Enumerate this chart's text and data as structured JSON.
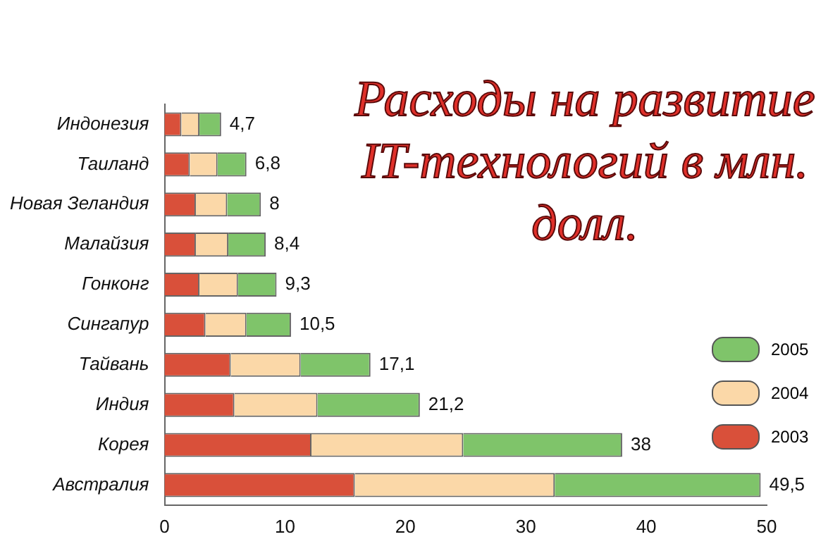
{
  "chart_data": {
    "type": "bar",
    "orientation": "horizontal",
    "stacked": true,
    "title": "Расходы на развитие IT-технологий в млн. долл.",
    "categories": [
      "Индонезия",
      "Таиланд",
      "Новая Зеландия",
      "Малайзия",
      "Гонконг",
      "Сингапур",
      "Тайвань",
      "Индия",
      "Корея",
      "Австралия"
    ],
    "series": [
      {
        "name": "2003",
        "color": "#d9503a",
        "values": [
          1.4,
          2.1,
          2.6,
          2.6,
          2.9,
          3.4,
          5.5,
          5.8,
          12.2,
          15.8
        ]
      },
      {
        "name": "2004",
        "color": "#fbd8a8",
        "values": [
          1.5,
          2.3,
          2.6,
          2.7,
          3.2,
          3.4,
          5.8,
          6.9,
          12.6,
          16.6
        ]
      },
      {
        "name": "2005",
        "color": "#7fc46a",
        "values": [
          1.8,
          2.4,
          2.8,
          3.1,
          3.2,
          3.7,
          5.8,
          8.5,
          13.2,
          17.1
        ]
      }
    ],
    "totals": [
      "4,7",
      "6,8",
      "8",
      "8,4",
      "9,3",
      "10,5",
      "17,1",
      "21,2",
      "38",
      "49,5"
    ],
    "xlim": [
      0,
      50
    ],
    "xticks": [
      0,
      10,
      20,
      30,
      40,
      50
    ],
    "grid": false,
    "legend": "bottom right"
  }
}
